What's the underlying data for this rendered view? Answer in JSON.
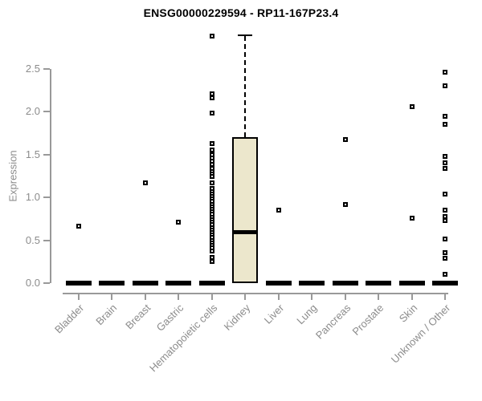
{
  "page": {
    "background": "#ffffff"
  },
  "chart_data": {
    "type": "boxplot",
    "title": "ENSG00000229594 - RP11-167P23.4",
    "ylabel": "Expression",
    "xlabel": "",
    "ylim": [
      0,
      2.9
    ],
    "yticks": [
      0,
      0.5,
      1,
      1.5,
      2,
      2.5
    ],
    "ytick_labels": [
      "0.0",
      "0.5",
      "1.0",
      "1.5",
      "2.0",
      "2.5"
    ],
    "grid": false,
    "legend": "none",
    "categories": [
      "Bladder",
      "Brain",
      "Breast",
      "Gastric",
      "Hematopoietic cells",
      "Kidney",
      "Liver",
      "Lung",
      "Pancreas",
      "Prostate",
      "Skin",
      "Unknown / Other"
    ],
    "boxes": [
      {
        "category": "Bladder",
        "q1": 0,
        "median": 0,
        "q3": 0,
        "whisker_low": 0,
        "whisker_high": 0,
        "outliers": [
          0.66
        ]
      },
      {
        "category": "Brain",
        "q1": 0,
        "median": 0,
        "q3": 0,
        "whisker_low": 0,
        "whisker_high": 0,
        "outliers": []
      },
      {
        "category": "Breast",
        "q1": 0,
        "median": 0,
        "q3": 0,
        "whisker_low": 0,
        "whisker_high": 0,
        "outliers": [
          1.17
        ]
      },
      {
        "category": "Gastric",
        "q1": 0,
        "median": 0,
        "q3": 0,
        "whisker_low": 0,
        "whisker_high": 0,
        "outliers": [
          0.71
        ]
      },
      {
        "category": "Hematopoietic cells",
        "q1": 0,
        "median": 0,
        "q3": 0,
        "whisker_low": 0,
        "whisker_high": 0,
        "outliers": [
          2.88,
          2.21,
          2.16,
          1.98,
          1.63,
          1.55,
          1.5,
          1.46,
          1.42,
          1.38,
          1.34,
          1.3,
          1.27,
          1.24,
          1.17,
          1.1,
          1.07,
          1.04,
          1.01,
          0.98,
          0.95,
          0.92,
          0.89,
          0.86,
          0.83,
          0.8,
          0.77,
          0.74,
          0.71,
          0.68,
          0.65,
          0.62,
          0.59,
          0.56,
          0.53,
          0.5,
          0.47,
          0.44,
          0.41,
          0.37,
          0.3,
          0.25
        ]
      },
      {
        "category": "Kidney",
        "q1": 0,
        "median": 0.6,
        "q3": 1.7,
        "whisker_low": 0,
        "whisker_high": 2.88,
        "outliers": []
      },
      {
        "category": "Liver",
        "q1": 0,
        "median": 0,
        "q3": 0,
        "whisker_low": 0,
        "whisker_high": 0,
        "outliers": [
          0.85
        ]
      },
      {
        "category": "Lung",
        "q1": 0,
        "median": 0,
        "q3": 0,
        "whisker_low": 0,
        "whisker_high": 0,
        "outliers": []
      },
      {
        "category": "Pancreas",
        "q1": 0,
        "median": 0,
        "q3": 0,
        "whisker_low": 0,
        "whisker_high": 0,
        "outliers": [
          1.67,
          0.92
        ]
      },
      {
        "category": "Prostate",
        "q1": 0,
        "median": 0,
        "q3": 0,
        "whisker_low": 0,
        "whisker_high": 0,
        "outliers": []
      },
      {
        "category": "Skin",
        "q1": 0,
        "median": 0,
        "q3": 0,
        "whisker_low": 0,
        "whisker_high": 0,
        "outliers": [
          2.06,
          0.76
        ]
      },
      {
        "category": "Unknown / Other",
        "q1": 0,
        "median": 0,
        "q3": 0,
        "whisker_low": 0,
        "whisker_high": 0,
        "outliers": [
          2.46,
          2.3,
          1.95,
          1.85,
          1.48,
          1.4,
          1.34,
          1.04,
          0.85,
          0.78,
          0.73,
          0.51,
          0.36,
          0.29,
          0.1
        ]
      }
    ],
    "colors": {
      "box_fill": "#ece7cc",
      "box_border": "#000000",
      "median": "#000000",
      "outlier": "#000000",
      "whisker": "#000000",
      "axis": "#999999",
      "tick_text": "#8c8c8c",
      "title_text": "#000000"
    }
  }
}
